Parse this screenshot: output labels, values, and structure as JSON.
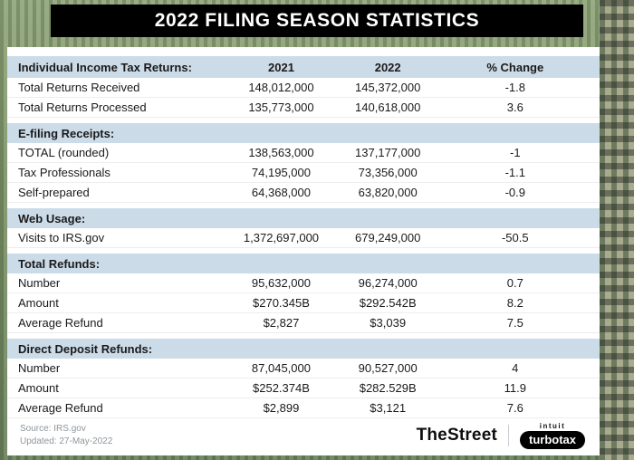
{
  "title": "2022 FILING SEASON STATISTICS",
  "chart_data": {
    "type": "table",
    "title": "2022 Filing Season Statistics",
    "columns": [
      "Individual Income Tax Returns:",
      "2021",
      "2022",
      "% Change"
    ],
    "sections": [
      {
        "header": "",
        "rows": [
          [
            "Total Returns Received",
            "148,012,000",
            "145,372,000",
            "-1.8"
          ],
          [
            "Total Returns Processed",
            "135,773,000",
            "140,618,000",
            "3.6"
          ]
        ]
      },
      {
        "header": "E-filing Receipts:",
        "rows": [
          [
            "TOTAL (rounded)",
            "138,563,000",
            "137,177,000",
            "-1"
          ],
          [
            "Tax Professionals",
            "74,195,000",
            "73,356,000",
            "-1.1"
          ],
          [
            "Self-prepared",
            "64,368,000",
            "63,820,000",
            "-0.9"
          ]
        ]
      },
      {
        "header": "Web Usage:",
        "rows": [
          [
            "Visits to IRS.gov",
            "1,372,697,000",
            "679,249,000",
            "-50.5"
          ]
        ]
      },
      {
        "header": "Total Refunds:",
        "rows": [
          [
            "Number",
            "95,632,000",
            "96,274,000",
            "0.7"
          ],
          [
            "Amount",
            "$270.345B",
            "$292.542B",
            "8.2"
          ],
          [
            "Average Refund",
            "$2,827",
            "$3,039",
            "7.5"
          ]
        ]
      },
      {
        "header": "Direct Deposit Refunds:",
        "rows": [
          [
            "Number",
            "87,045,000",
            "90,527,000",
            "4"
          ],
          [
            "Amount",
            "$252.374B",
            "$282.529B",
            "11.9"
          ],
          [
            "Average Refund",
            "$2,899",
            "$3,121",
            "7.6"
          ]
        ]
      }
    ]
  },
  "footer": {
    "source": "Source: IRS.gov",
    "updated": "Updated: 27-May-2022",
    "brand_thestreet": "TheStreet",
    "brand_intuit": "intuit",
    "brand_turbotax": "turbotax"
  },
  "colors": {
    "banner_bg": "#000000",
    "banner_text": "#ffffff",
    "section_header_bg": "#ccdbe8",
    "card_bg": "#ffffff",
    "photo_green": "#7f9569"
  }
}
